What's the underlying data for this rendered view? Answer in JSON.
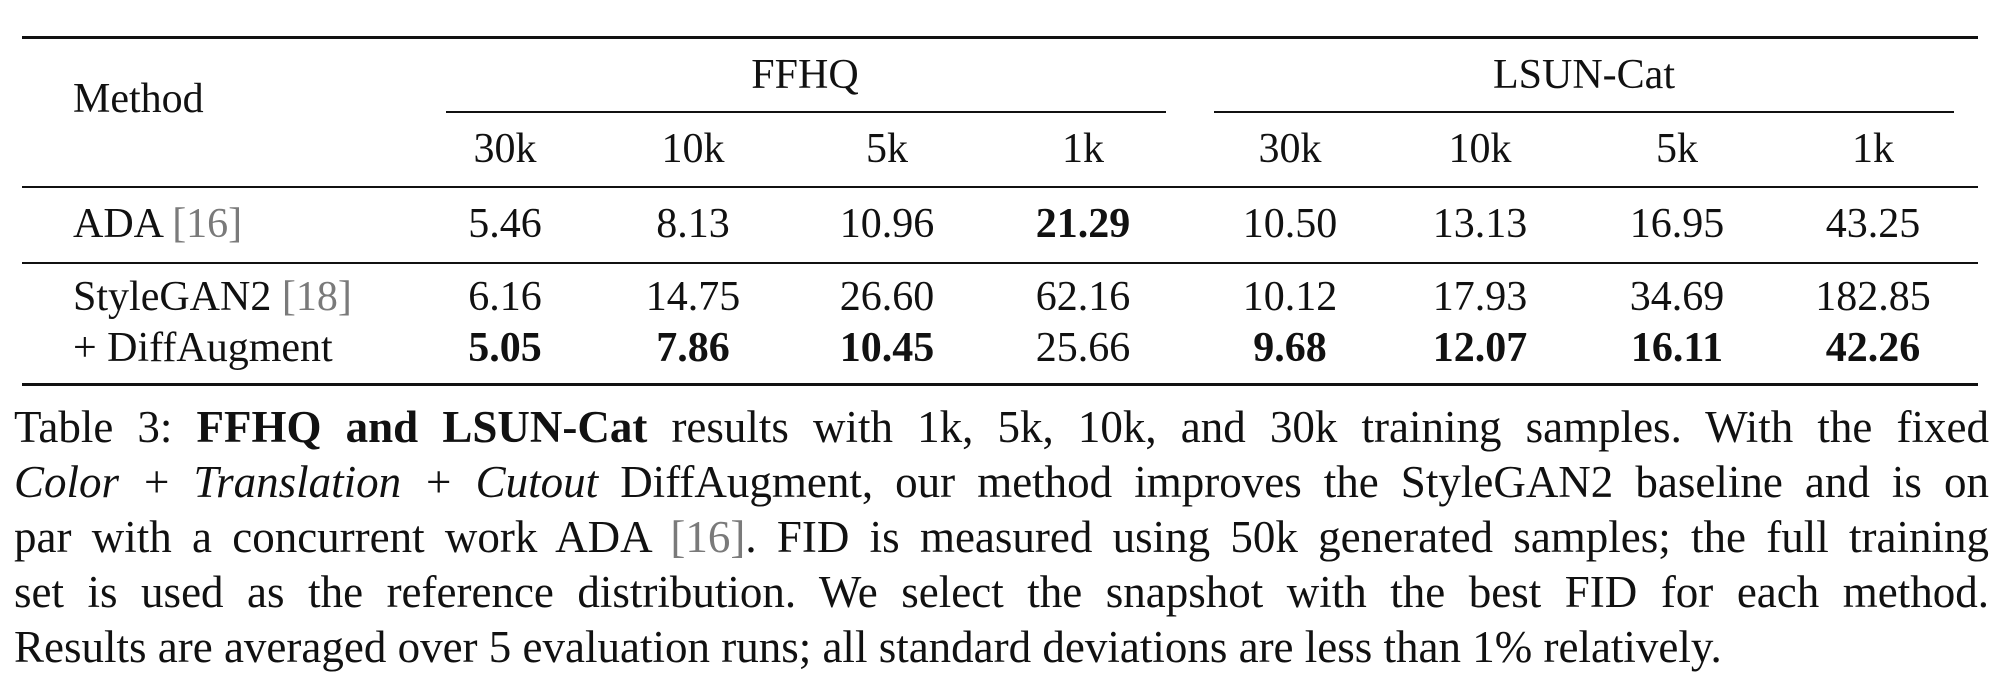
{
  "table": {
    "method_header": "Method",
    "groups": [
      "FFHQ",
      "LSUN-Cat"
    ],
    "subheaders": [
      "30k",
      "10k",
      "5k",
      "1k",
      "30k",
      "10k",
      "5k",
      "1k"
    ],
    "rows": [
      {
        "method": "ADA",
        "cite": "[16]",
        "values": [
          "5.46",
          "8.13",
          "10.96",
          "21.29",
          "10.50",
          "13.13",
          "16.95",
          "43.25"
        ],
        "bold": [
          false,
          false,
          false,
          true,
          false,
          false,
          false,
          false
        ]
      },
      {
        "method": "StyleGAN2",
        "cite": "[18]",
        "values": [
          "6.16",
          "14.75",
          "26.60",
          "62.16",
          "10.12",
          "17.93",
          "34.69",
          "182.85"
        ],
        "bold": [
          false,
          false,
          false,
          false,
          false,
          false,
          false,
          false
        ]
      },
      {
        "method": "+ DiffAugment",
        "cite": "",
        "values": [
          "5.05",
          "7.86",
          "10.45",
          "25.66",
          "9.68",
          "12.07",
          "16.11",
          "42.26"
        ],
        "bold": [
          true,
          true,
          true,
          false,
          true,
          true,
          true,
          true
        ]
      }
    ]
  },
  "caption": {
    "l1_prefix": "Table 3: ",
    "l1_bold": "FFHQ and LSUN-Cat",
    "l1_rest": " results with 1k, 5k, 10k, and 30k training samples. With the fixed",
    "l2_italic": "Color + Translation + Cutout",
    "l2_rest": " DiffAugment, our method improves the StyleGAN2 baseline and is on",
    "l3_pre": "par with a concurrent work ADA ",
    "l3_cite": "[16]",
    "l3_post": ". FID is measured using 50k generated samples; the full training",
    "l4": "set is used as the reference distribution. We select the snapshot with the best FID for each method.",
    "l5": "Results are averaged over 5 evaluation runs; all standard deviations are less than 1% relatively."
  }
}
